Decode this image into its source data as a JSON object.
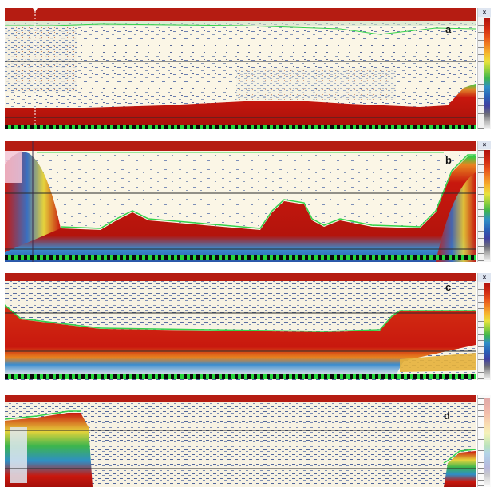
{
  "panels": [
    {
      "label": "a",
      "close_label": "×"
    },
    {
      "label": "b",
      "close_label": "×"
    },
    {
      "label": "c",
      "close_label": "×"
    },
    {
      "label": "d",
      "close_label": ""
    }
  ],
  "colors": {
    "surface_band": "#b51c12",
    "water_background": "#fbf6e6",
    "seabed_core": "#c8180e",
    "bottom_line": "#34d24a",
    "gridline": "#2a2a2a"
  },
  "icons": {
    "close": "close-icon",
    "marker": "triangle-marker-icon"
  }
}
